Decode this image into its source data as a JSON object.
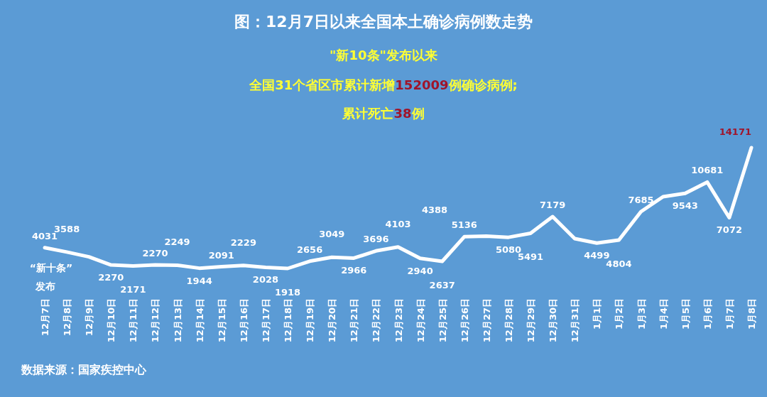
{
  "chart_data": {
    "type": "line",
    "title": "图：12月7日以来全国本土确诊病例数走势",
    "categories": [
      "12月7日",
      "12月8日",
      "12月9日",
      "12月10日",
      "12月11日",
      "12月12日",
      "12月13日",
      "12月14日",
      "12月15日",
      "12月16日",
      "12月17日",
      "12月18日",
      "12月19日",
      "12月20日",
      "12月21日",
      "12月22日",
      "12月23日",
      "12月24日",
      "12月25日",
      "12月26日",
      "12月27日",
      "12月28日",
      "12月29日",
      "12月30日",
      "12月31日",
      "1月1日",
      "1月2日",
      "1月3日",
      "1月4日",
      "1月5日",
      "1月6日",
      "1月7日",
      "1月8日"
    ],
    "series": [
      {
        "color": "#ffffff",
        "values": [
          4031,
          3588,
          3100,
          2270,
          2171,
          2270,
          2249,
          1944,
          2091,
          2229,
          2028,
          1918,
          2656,
          3049,
          2966,
          3696,
          4103,
          2940,
          2637,
          5136,
          5200,
          5080,
          5491,
          7179,
          4950,
          4499,
          4804,
          7685,
          9200,
          9543,
          10681,
          7072,
          14171
        ],
        "value_labels": [
          "4031",
          "3588",
          null,
          "2270",
          "2171",
          "2270",
          "2249",
          "1944",
          "2091",
          "2229",
          "2028",
          "1918",
          "2656",
          "3049",
          "2966",
          "3696",
          "4103",
          "2940",
          "2637",
          "5136",
          null,
          "5080",
          "5491",
          "7179",
          null,
          "4499",
          "4804",
          "7685",
          null,
          "9543",
          "10681",
          "7072",
          "14171"
        ]
      }
    ],
    "annotations": [
      "“新十条”",
      "发布",
      "\"新10条\"发布以来",
      "全国31个省区市累计新增",
      "152009",
      "例确诊病例;",
      "累计死亡",
      "38",
      "例",
      "4388",
      "数据来源：国家疾控中心"
    ],
    "grid": false
  }
}
